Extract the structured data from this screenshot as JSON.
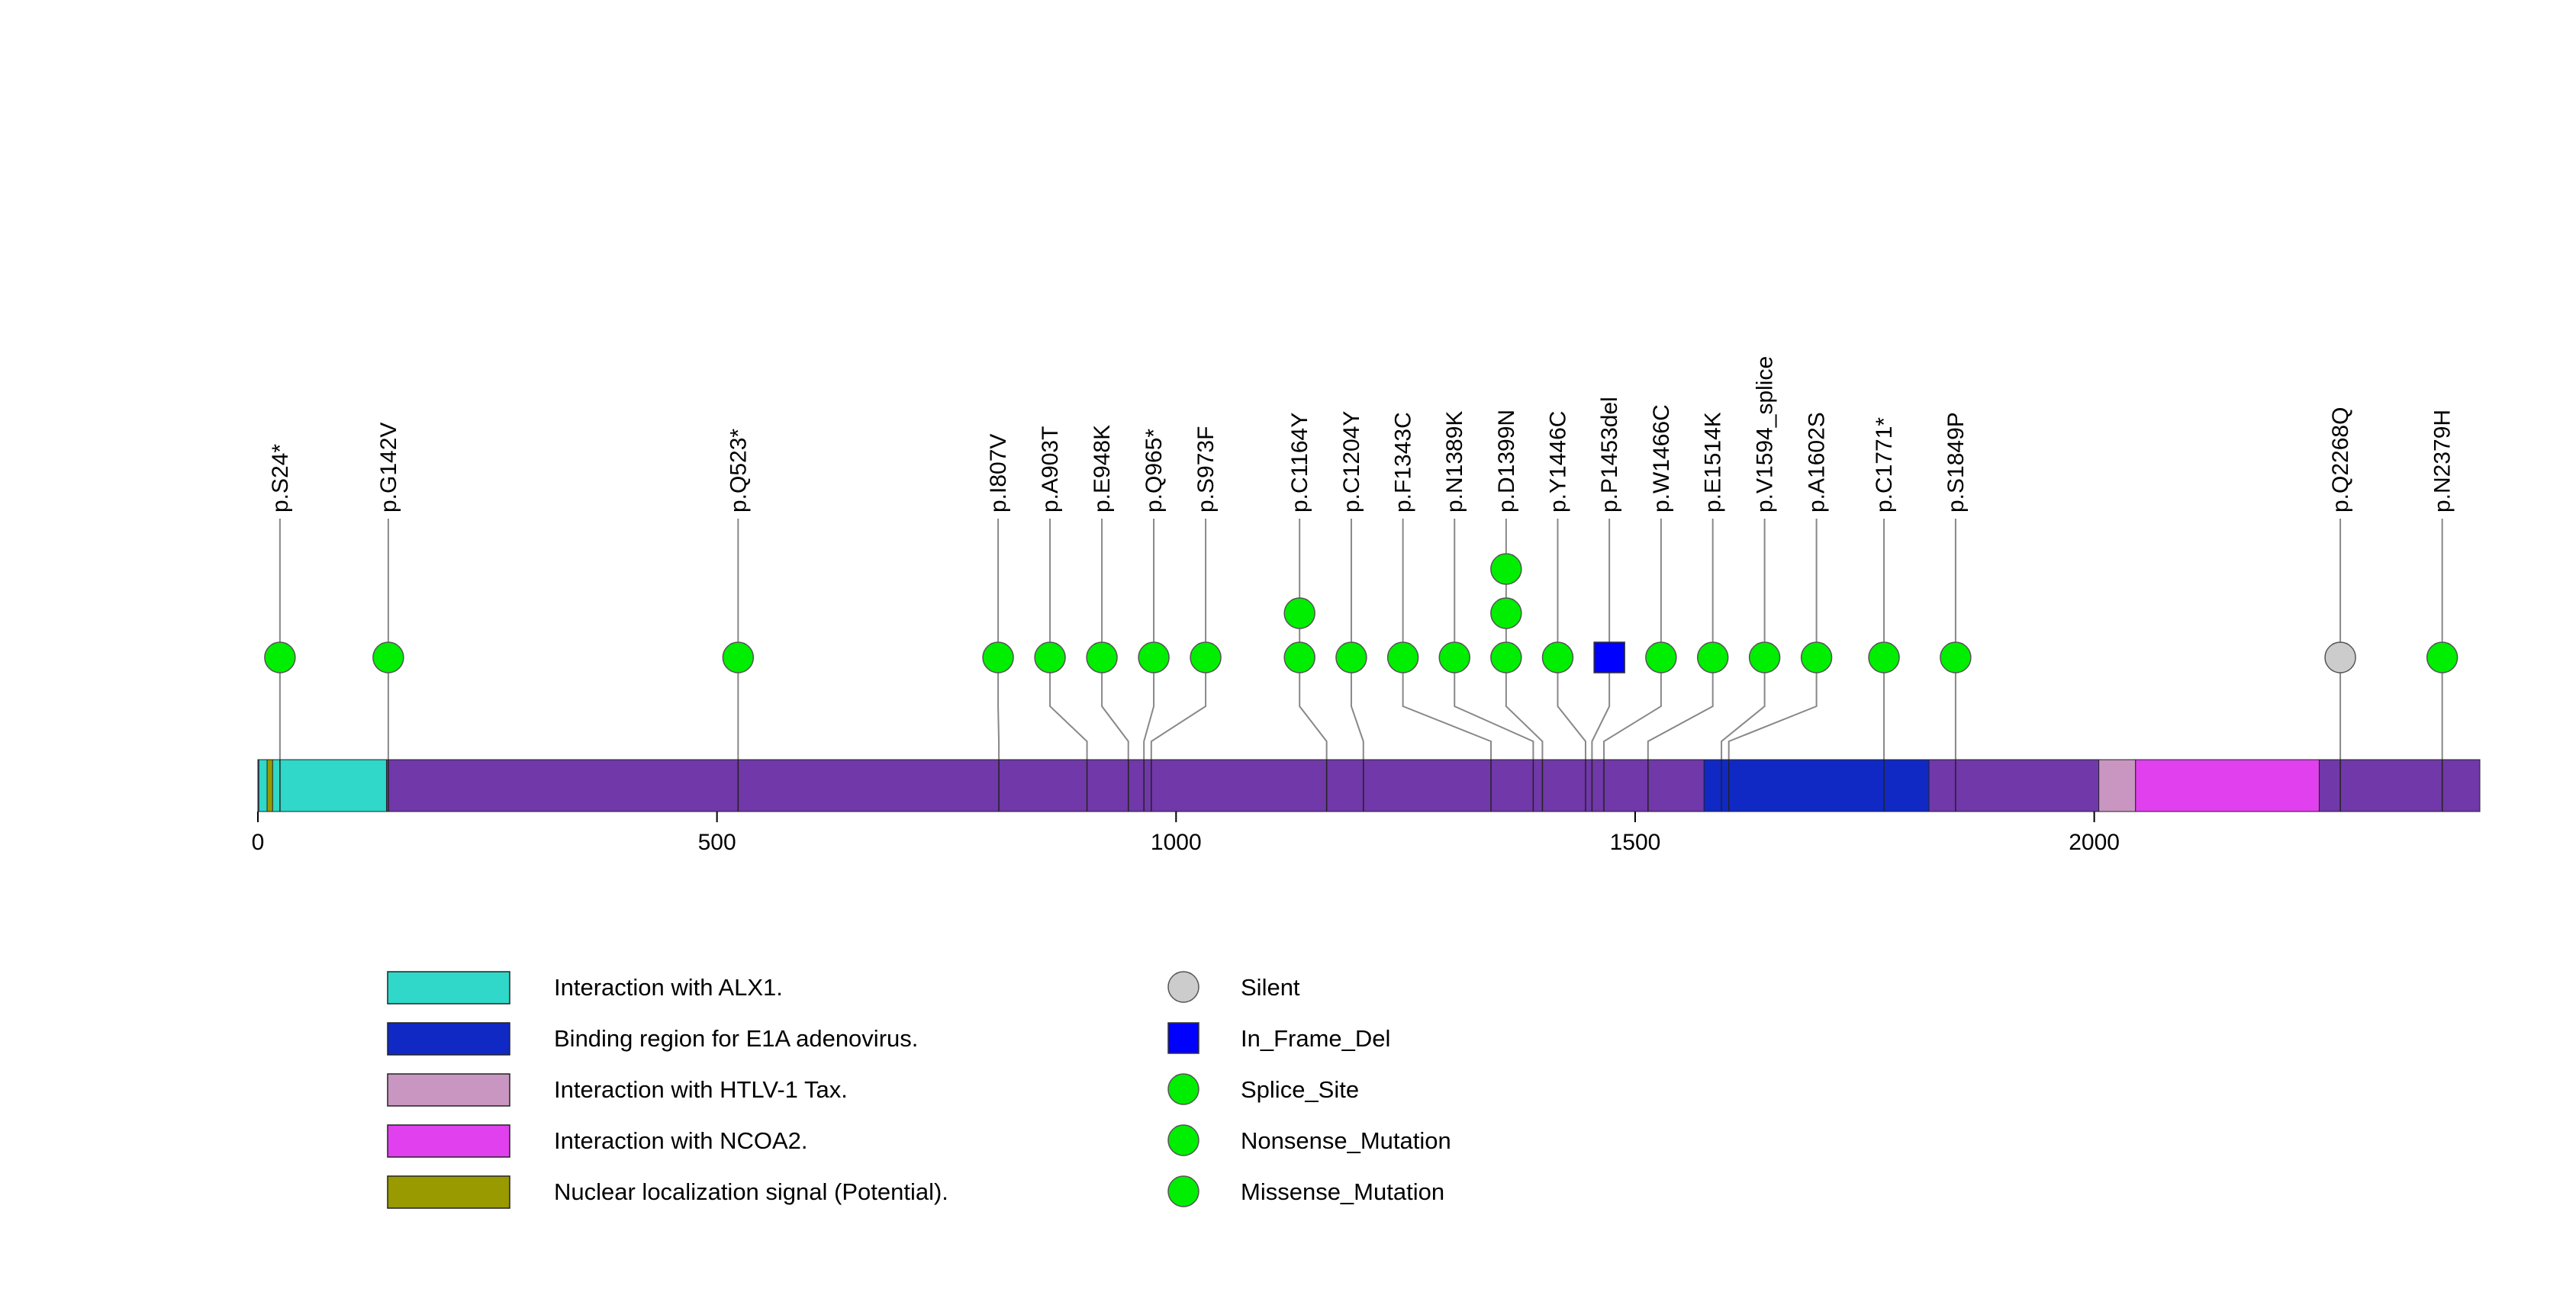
{
  "chart_data": {
    "type": "lollipop",
    "protein_length": 2420,
    "x_axis": {
      "ticks": [
        0,
        500,
        1000,
        1500,
        2000
      ],
      "tick_labels": [
        "0",
        "500",
        "1000",
        "1500",
        "2000"
      ]
    },
    "domains": [
      {
        "name": "Interaction with ALX1.",
        "start": 1,
        "end": 140,
        "color": "#2fd8c8"
      },
      {
        "name": "Nuclear localization signal (Potential).",
        "start": 10,
        "end": 16,
        "color": "#999900"
      },
      {
        "name": "Binding region for E1A adenovirus.",
        "start": 1575,
        "end": 1820,
        "color": "#1029c4"
      },
      {
        "name": "Interaction with HTLV-1 Tax.",
        "start": 2005,
        "end": 2045,
        "color": "#c896c0"
      },
      {
        "name": "Interaction with NCOA2.",
        "start": 2045,
        "end": 2245,
        "color": "#e040ee"
      }
    ],
    "backbone_color": "#7038a8",
    "mutations": [
      {
        "label": "p.S24*",
        "position": 24,
        "count": 1,
        "type": "Nonsense_Mutation"
      },
      {
        "label": "p.G142V",
        "position": 142,
        "count": 1,
        "type": "Missense_Mutation"
      },
      {
        "label": "p.Q523*",
        "position": 523,
        "count": 1,
        "type": "Nonsense_Mutation"
      },
      {
        "label": "p.I807V",
        "position": 807,
        "count": 1,
        "type": "Missense_Mutation"
      },
      {
        "label": "p.A903T",
        "position": 903,
        "count": 1,
        "type": "Missense_Mutation"
      },
      {
        "label": "p.E948K",
        "position": 948,
        "count": 1,
        "type": "Missense_Mutation"
      },
      {
        "label": "p.Q965*",
        "position": 965,
        "count": 1,
        "type": "Nonsense_Mutation"
      },
      {
        "label": "p.S973F",
        "position": 973,
        "count": 1,
        "type": "Missense_Mutation"
      },
      {
        "label": "p.C1164Y",
        "position": 1164,
        "count": 2,
        "type": "Missense_Mutation"
      },
      {
        "label": "p.C1204Y",
        "position": 1204,
        "count": 1,
        "type": "Missense_Mutation"
      },
      {
        "label": "p.F1343C",
        "position": 1343,
        "count": 1,
        "type": "Missense_Mutation"
      },
      {
        "label": "p.N1389K",
        "position": 1389,
        "count": 1,
        "type": "Missense_Mutation"
      },
      {
        "label": "p.D1399N",
        "position": 1399,
        "count": 3,
        "type": "Missense_Mutation"
      },
      {
        "label": "p.Y1446C",
        "position": 1446,
        "count": 1,
        "type": "Missense_Mutation"
      },
      {
        "label": "p.P1453del",
        "position": 1453,
        "count": 1,
        "type": "In_Frame_Del"
      },
      {
        "label": "p.W1466C",
        "position": 1466,
        "count": 1,
        "type": "Missense_Mutation"
      },
      {
        "label": "p.E1514K",
        "position": 1514,
        "count": 1,
        "type": "Missense_Mutation"
      },
      {
        "label": "p.V1594_splice",
        "position": 1594,
        "count": 1,
        "type": "Splice_Site"
      },
      {
        "label": "p.A1602S",
        "position": 1602,
        "count": 1,
        "type": "Missense_Mutation"
      },
      {
        "label": "p.C1771*",
        "position": 1771,
        "count": 1,
        "type": "Nonsense_Mutation"
      },
      {
        "label": "p.S1849P",
        "position": 1849,
        "count": 1,
        "type": "Missense_Mutation"
      },
      {
        "label": "p.Q2268Q",
        "position": 2268,
        "count": 1,
        "type": "Silent"
      },
      {
        "label": "p.N2379H",
        "position": 2379,
        "count": 1,
        "type": "Missense_Mutation"
      }
    ],
    "mutation_legend": [
      {
        "label": "Silent",
        "shape": "circle",
        "color": "#cccccc"
      },
      {
        "label": "In_Frame_Del",
        "shape": "square",
        "color": "#0000ff"
      },
      {
        "label": "Splice_Site",
        "shape": "circle",
        "color": "#00ee00"
      },
      {
        "label": "Nonsense_Mutation",
        "shape": "circle",
        "color": "#00ee00"
      },
      {
        "label": "Missense_Mutation",
        "shape": "circle",
        "color": "#00ee00"
      }
    ],
    "domain_legend": [
      {
        "label": "Interaction with ALX1.",
        "color": "#2fd8c8"
      },
      {
        "label": "Binding region for E1A adenovirus.",
        "color": "#1029c4"
      },
      {
        "label": "Interaction with HTLV-1 Tax.",
        "color": "#c896c0"
      },
      {
        "label": "Interaction with NCOA2.",
        "color": "#e040ee"
      },
      {
        "label": "Nuclear localization signal (Potential).",
        "color": "#999900"
      }
    ]
  }
}
